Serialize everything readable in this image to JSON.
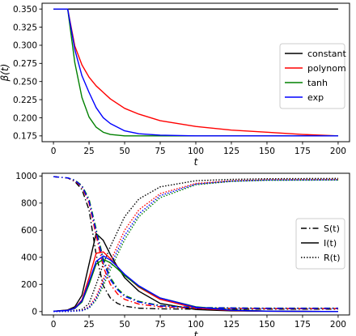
{
  "chart_data": [
    {
      "type": "line",
      "title": "",
      "xlabel": "t",
      "ylabel": "β(t)",
      "xlim": [
        -8,
        208
      ],
      "ylim": [
        0.167,
        0.358
      ],
      "xticks": [
        "0",
        "25",
        "50",
        "75",
        "100",
        "125",
        "150",
        "175",
        "200"
      ],
      "yticks": [
        "0.175",
        "0.200",
        "0.225",
        "0.250",
        "0.275",
        "0.300",
        "0.325",
        "0.350"
      ],
      "legend_position": "center-right",
      "grid": false,
      "series": [
        {
          "name": "constant",
          "color": "#000000",
          "x": [
            0,
            200
          ],
          "y": [
            0.35,
            0.35
          ]
        },
        {
          "name": "polynom",
          "color": "#ff0000",
          "x": [
            0,
            10,
            15,
            20,
            25,
            30,
            40,
            50,
            60,
            75,
            100,
            125,
            150,
            175,
            200
          ],
          "y": [
            0.35,
            0.35,
            0.299,
            0.273,
            0.256,
            0.244,
            0.226,
            0.213,
            0.205,
            0.196,
            0.188,
            0.183,
            0.18,
            0.177,
            0.175
          ]
        },
        {
          "name": "tanh",
          "color": "#008000",
          "x": [
            0,
            10,
            15,
            20,
            25,
            30,
            35,
            40,
            50,
            60,
            75,
            100,
            150,
            200
          ],
          "y": [
            0.35,
            0.35,
            0.276,
            0.228,
            0.201,
            0.187,
            0.18,
            0.177,
            0.175,
            0.175,
            0.175,
            0.175,
            0.175,
            0.175
          ]
        },
        {
          "name": "exp",
          "color": "#0000ff",
          "x": [
            0,
            10,
            15,
            20,
            25,
            30,
            35,
            40,
            50,
            60,
            75,
            100,
            150,
            200
          ],
          "y": [
            0.35,
            0.35,
            0.294,
            0.258,
            0.235,
            0.214,
            0.2,
            0.192,
            0.182,
            0.178,
            0.176,
            0.175,
            0.175,
            0.175
          ]
        }
      ]
    },
    {
      "type": "line",
      "title": "",
      "xlabel": "t",
      "ylabel": "",
      "xlim": [
        -8,
        208
      ],
      "ylim": [
        -25,
        1020
      ],
      "xticks": [
        "0",
        "25",
        "50",
        "75",
        "100",
        "125",
        "150",
        "175",
        "200"
      ],
      "yticks": [
        "0",
        "200",
        "400",
        "600",
        "800",
        "1000"
      ],
      "legend_position": "center-right",
      "grid": false,
      "legend": [
        {
          "label": "S(t)",
          "style": "dashdot"
        },
        {
          "label": "I(t)",
          "style": "solid"
        },
        {
          "label": "R(t)",
          "style": "dotted"
        }
      ],
      "series": [
        {
          "variable": "S(t)",
          "model": "constant",
          "color": "#000000",
          "style": "dashdot",
          "x": [
            0,
            10,
            15,
            20,
            25,
            30,
            35,
            40,
            45,
            50,
            60,
            75,
            100,
            150,
            200
          ],
          "y": [
            995,
            985,
            960,
            900,
            750,
            420,
            190,
            100,
            60,
            40,
            25,
            20,
            18,
            18,
            18
          ]
        },
        {
          "variable": "I(t)",
          "model": "constant",
          "color": "#000000",
          "style": "solid",
          "x": [
            0,
            10,
            15,
            20,
            25,
            30,
            35,
            40,
            45,
            50,
            60,
            75,
            100,
            125,
            150,
            200
          ],
          "y": [
            2,
            12,
            35,
            120,
            350,
            575,
            525,
            420,
            330,
            250,
            150,
            60,
            15,
            5,
            2,
            0
          ]
        },
        {
          "variable": "R(t)",
          "model": "constant",
          "color": "#000000",
          "style": "dotted",
          "x": [
            0,
            10,
            20,
            25,
            30,
            35,
            40,
            50,
            60,
            75,
            100,
            125,
            150,
            200
          ],
          "y": [
            0,
            2,
            15,
            60,
            200,
            350,
            480,
            700,
            830,
            920,
            965,
            975,
            980,
            982
          ]
        },
        {
          "variable": "S(t)",
          "model": "polynom",
          "color": "#ff0000",
          "style": "dashdot",
          "x": [
            0,
            10,
            15,
            20,
            25,
            30,
            35,
            40,
            45,
            50,
            60,
            75,
            100,
            150,
            200
          ],
          "y": [
            995,
            985,
            965,
            920,
            800,
            560,
            330,
            200,
            130,
            90,
            55,
            35,
            25,
            22,
            22
          ]
        },
        {
          "variable": "I(t)",
          "model": "polynom",
          "color": "#ff0000",
          "style": "solid",
          "x": [
            0,
            10,
            15,
            20,
            25,
            30,
            35,
            40,
            45,
            50,
            60,
            75,
            100,
            125,
            150,
            200
          ],
          "y": [
            2,
            10,
            25,
            85,
            250,
            430,
            440,
            390,
            330,
            270,
            180,
            90,
            25,
            8,
            3,
            0
          ]
        },
        {
          "variable": "R(t)",
          "model": "polynom",
          "color": "#ff0000",
          "style": "dotted",
          "x": [
            0,
            10,
            20,
            25,
            30,
            35,
            40,
            50,
            60,
            75,
            100,
            125,
            150,
            200
          ],
          "y": [
            0,
            1,
            8,
            35,
            110,
            240,
            370,
            600,
            750,
            870,
            945,
            965,
            972,
            975
          ]
        },
        {
          "variable": "S(t)",
          "model": "tanh",
          "color": "#008000",
          "style": "dashdot",
          "x": [
            0,
            10,
            15,
            20,
            25,
            30,
            35,
            40,
            45,
            50,
            60,
            75,
            100,
            150,
            200
          ],
          "y": [
            995,
            986,
            970,
            930,
            830,
            610,
            390,
            250,
            170,
            120,
            75,
            45,
            30,
            25,
            25
          ]
        },
        {
          "variable": "I(t)",
          "model": "tanh",
          "color": "#008000",
          "style": "solid",
          "x": [
            0,
            10,
            15,
            20,
            25,
            30,
            35,
            40,
            45,
            50,
            60,
            75,
            100,
            125,
            150,
            200
          ],
          "y": [
            2,
            9,
            22,
            70,
            200,
            350,
            385,
            360,
            315,
            265,
            185,
            100,
            35,
            12,
            4,
            0
          ]
        },
        {
          "variable": "R(t)",
          "model": "tanh",
          "color": "#008000",
          "style": "dotted",
          "x": [
            0,
            10,
            20,
            25,
            30,
            35,
            40,
            50,
            60,
            75,
            100,
            125,
            150,
            200
          ],
          "y": [
            0,
            1,
            6,
            25,
            85,
            190,
            310,
            530,
            700,
            840,
            935,
            960,
            968,
            970
          ]
        },
        {
          "variable": "S(t)",
          "model": "exp",
          "color": "#0000ff",
          "style": "dashdot",
          "x": [
            0,
            10,
            15,
            20,
            25,
            30,
            35,
            40,
            45,
            50,
            60,
            75,
            100,
            150,
            200
          ],
          "y": [
            995,
            986,
            968,
            925,
            815,
            590,
            370,
            235,
            160,
            112,
            70,
            42,
            28,
            24,
            24
          ]
        },
        {
          "variable": "I(t)",
          "model": "exp",
          "color": "#0000ff",
          "style": "solid",
          "x": [
            0,
            10,
            15,
            20,
            25,
            30,
            35,
            40,
            45,
            50,
            60,
            75,
            100,
            125,
            150,
            200
          ],
          "y": [
            2,
            9,
            24,
            78,
            220,
            370,
            410,
            380,
            330,
            275,
            190,
            100,
            32,
            10,
            3,
            0
          ]
        },
        {
          "variable": "R(t)",
          "model": "exp",
          "color": "#0000ff",
          "style": "dotted",
          "x": [
            0,
            10,
            20,
            25,
            30,
            35,
            40,
            50,
            60,
            75,
            100,
            125,
            150,
            200
          ],
          "y": [
            0,
            1,
            7,
            30,
            95,
            215,
            340,
            560,
            720,
            855,
            940,
            962,
            970,
            972
          ]
        }
      ]
    }
  ]
}
